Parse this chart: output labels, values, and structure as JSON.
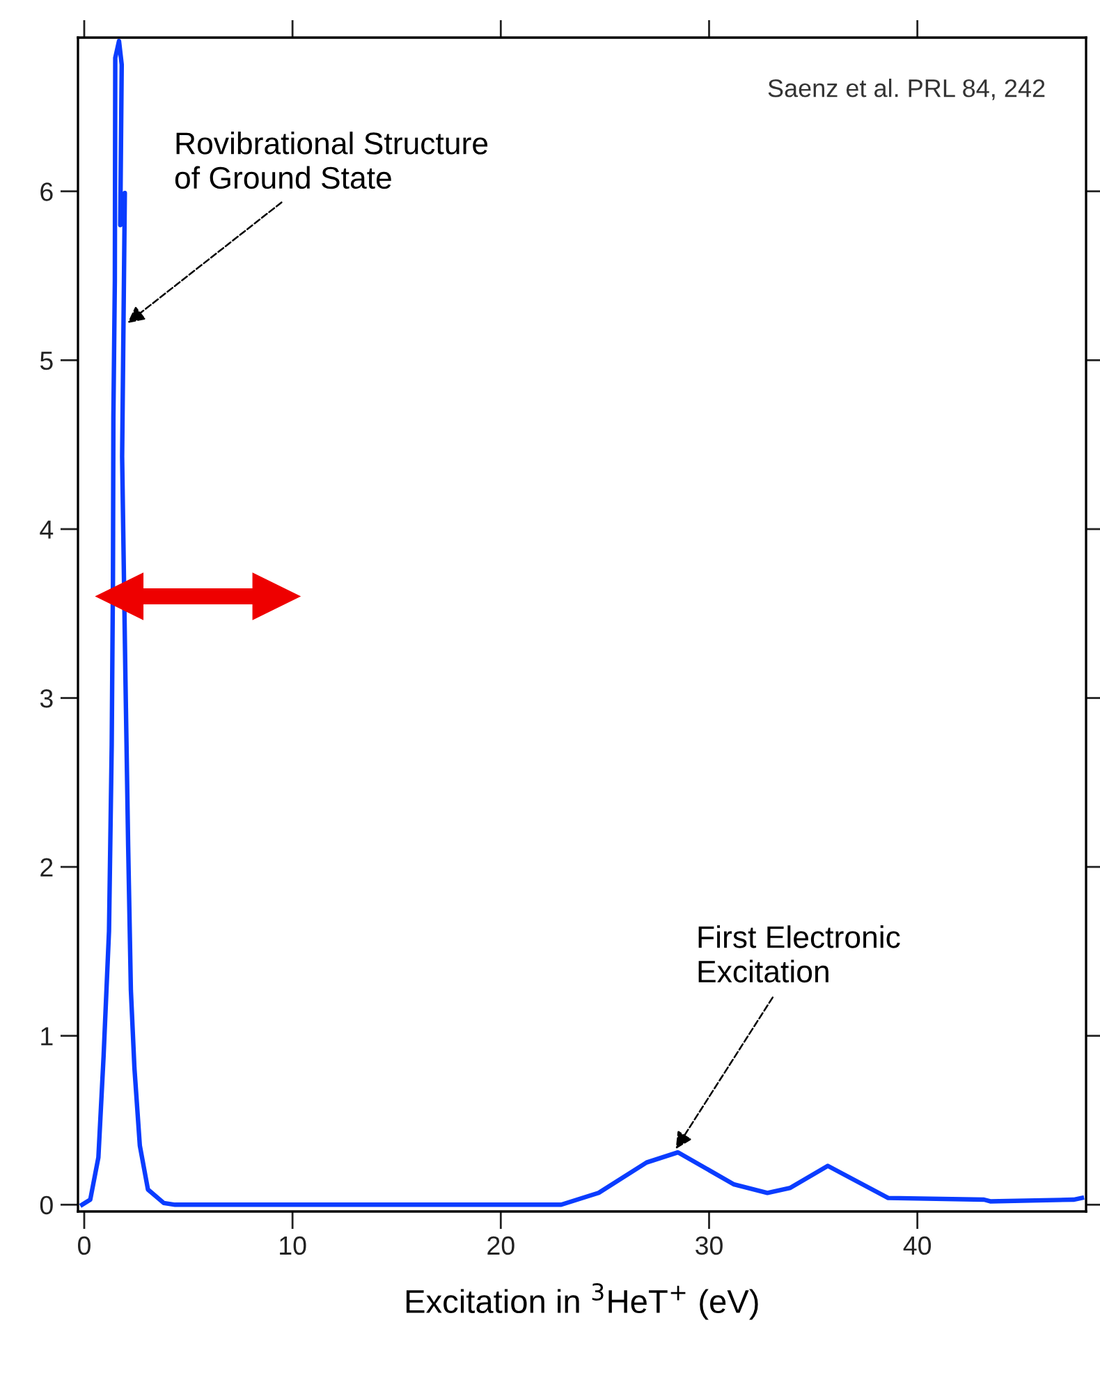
{
  "chart_data": {
    "type": "line",
    "xlabel": "Excitation in $^{3}$HeT$^{+}$ (eV)",
    "xlim": [
      -0.3,
      48.1
    ],
    "ylim": [
      -0.04,
      6.91
    ],
    "xticks": [
      0,
      10,
      20,
      30,
      40
    ],
    "yticks": [
      0,
      1,
      2,
      3,
      4,
      5,
      6
    ],
    "grid": false,
    "marker": "none",
    "line_style": "solid",
    "series": [
      {
        "color": "#0a3cff",
        "x": [
          -0.1,
          0.29,
          0.68,
          0.93,
          1.19,
          1.32,
          1.38,
          1.4,
          1.47,
          1.49,
          1.67,
          1.8,
          1.73,
          1.95,
          1.82,
          1.98,
          2.11,
          2.24,
          2.41,
          2.67,
          3.06,
          3.82,
          4.36,
          22.7,
          22.9,
          24.7,
          27.0,
          28.5,
          31.2,
          32.8,
          33.9,
          35.7,
          38.6,
          43.2,
          43.5,
          47.5,
          47.9
        ],
        "values": [
          0.0,
          0.03,
          0.28,
          0.88,
          1.62,
          2.72,
          3.71,
          4.66,
          5.47,
          6.79,
          6.89,
          6.75,
          5.8,
          5.99,
          4.43,
          3.11,
          2.12,
          1.27,
          0.81,
          0.35,
          0.09,
          0.01,
          0.0,
          0.0,
          0.0,
          0.07,
          0.25,
          0.31,
          0.12,
          0.07,
          0.1,
          0.23,
          0.04,
          0.03,
          0.02,
          0.03,
          0.04
        ]
      }
    ],
    "annotations": [
      "Saenz et al. PRL 84, 242",
      {
        "text": "Rovibrational Structure\nof Ground State",
        "x": 2.08,
        "y": 5.22
      },
      {
        "text": "First Electronic\nExcitation",
        "x": 28.4,
        "y": 0.33
      }
    ]
  }
}
